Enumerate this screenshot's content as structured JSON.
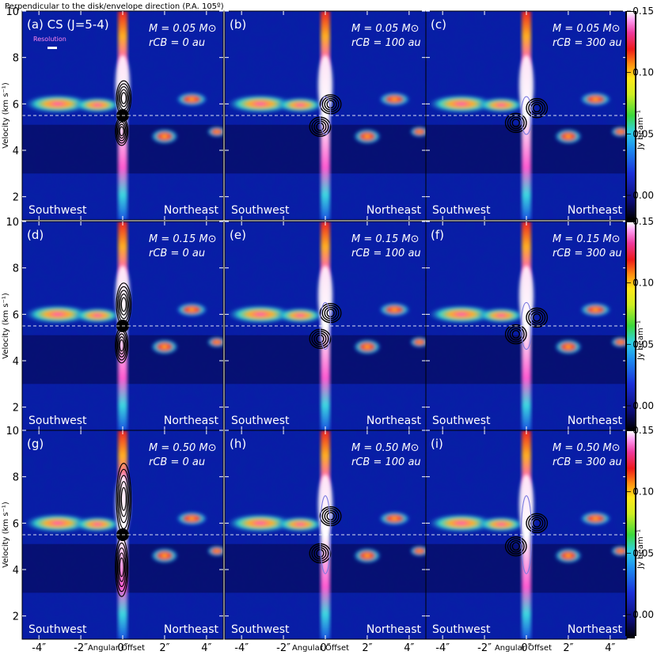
{
  "figure_title": "Perpendicular to the disk/envelope direction (P.A. 105º)",
  "resolution_label": "Resolution",
  "colorbar": {
    "label": "Jy beam⁻¹",
    "ticks": [
      0.0,
      0.05,
      0.1,
      0.15
    ],
    "tick_labels": [
      "0.00",
      "0.05",
      "0.10",
      "0.15"
    ]
  },
  "chart_data": {
    "type": "heatmap",
    "title": "Perpendicular to the disk/envelope direction (P.A. 105º)",
    "line": "CS (J=5-4)",
    "xlabel": "Angular Offset",
    "ylabel": "Velocity (km s⁻¹)",
    "x_ticks": [
      -4,
      -2,
      0,
      2,
      4
    ],
    "x_tick_labels": [
      "-4″",
      "-2″",
      "0″",
      "2″",
      "4″"
    ],
    "y_ticks": [
      2,
      4,
      6,
      8,
      10
    ],
    "y_tick_labels": [
      "2",
      "4",
      "6",
      "8",
      "10"
    ],
    "xlim": [
      -4.8,
      4.8
    ],
    "ylim": [
      1,
      10
    ],
    "systemic_velocity": 5.5,
    "colorbar_range": [
      -0.02,
      0.15
    ],
    "direction_labels": [
      "Southwest",
      "Northeast"
    ],
    "panels": [
      {
        "label": "(a) CS (J=5-4)",
        "mass_text": "M = 0.05 M⊙",
        "rcb_text": "rCB = 0 au",
        "M": 0.05,
        "rCB": 0
      },
      {
        "label": "(b)",
        "mass_text": "M = 0.05 M⊙",
        "rcb_text": "rCB = 100 au",
        "M": 0.05,
        "rCB": 100
      },
      {
        "label": "(c)",
        "mass_text": "M = 0.05 M⊙",
        "rcb_text": "rCB = 300 au",
        "M": 0.05,
        "rCB": 300
      },
      {
        "label": "(d)",
        "mass_text": "M = 0.15 M⊙",
        "rcb_text": "rCB = 0 au",
        "M": 0.15,
        "rCB": 0
      },
      {
        "label": "(e)",
        "mass_text": "M = 0.15 M⊙",
        "rcb_text": "rCB = 100 au",
        "M": 0.15,
        "rCB": 100
      },
      {
        "label": "(f)",
        "mass_text": "M = 0.15 M⊙",
        "rcb_text": "rCB = 300 au",
        "M": 0.15,
        "rCB": 300
      },
      {
        "label": "(g)",
        "mass_text": "M = 0.50 M⊙",
        "rcb_text": "rCB = 0 au",
        "M": 0.5,
        "rCB": 0
      },
      {
        "label": "(h)",
        "mass_text": "M = 0.50 M⊙",
        "rcb_text": "rCB = 100 au",
        "M": 0.5,
        "rCB": 100
      },
      {
        "label": "(i)",
        "mass_text": "M = 0.50 M⊙",
        "rcb_text": "rCB = 300 au",
        "M": 0.5,
        "rCB": 300
      }
    ]
  }
}
